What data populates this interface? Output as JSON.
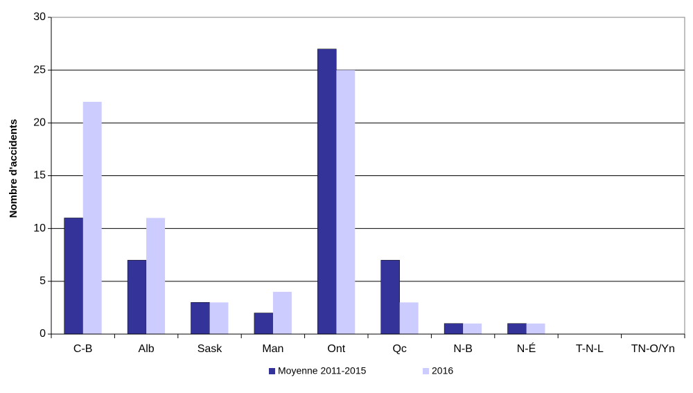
{
  "chart_data": {
    "type": "bar",
    "y_label": "Nombre d'accidents",
    "categories": [
      "C-B",
      "Alb",
      "Sask",
      "Man",
      "Ont",
      "Qc",
      "N-B",
      "N-É",
      "T-N-L",
      "TN-O/Yn"
    ],
    "series": [
      {
        "name": "Moyenne 2011-2015",
        "color": "#333399",
        "values": [
          11,
          7,
          3,
          2,
          27,
          7,
          1,
          1,
          0,
          0
        ]
      },
      {
        "name": "2016",
        "color": "#ccccff",
        "values": [
          22,
          11,
          3,
          4,
          25,
          3,
          1,
          1,
          0,
          0
        ]
      }
    ],
    "ylim": [
      0,
      30
    ],
    "yticks": [
      0,
      5,
      10,
      15,
      20,
      25,
      30
    ],
    "grid": true,
    "legend": "bottom"
  }
}
